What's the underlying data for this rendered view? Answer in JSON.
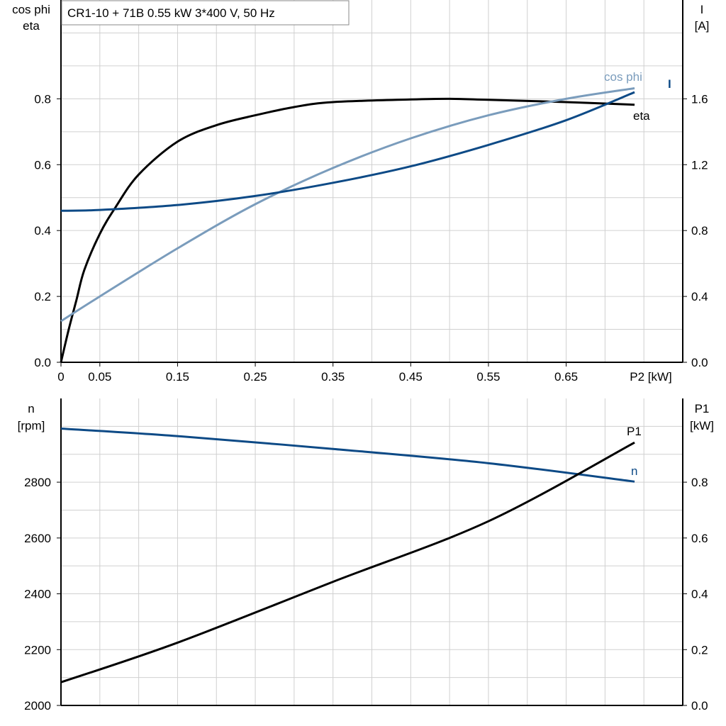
{
  "chart_data": [
    {
      "type": "line",
      "title": "CR1-10 + 71B   0.55 kW   3*400 V, 50 Hz",
      "xlabel": "P2 [kW]",
      "ylabel": [
        "cos phi",
        "eta"
      ],
      "y2label": [
        "I",
        "[A]"
      ],
      "xlim": [
        0,
        0.8
      ],
      "ylim": [
        0,
        1.1
      ],
      "y2lim": [
        0,
        2.2
      ],
      "xticks": [
        "0",
        "0.05",
        "0.15",
        "0.25",
        "0.35",
        "0.45",
        "0.55",
        "0.65"
      ],
      "xtick_values": [
        0,
        0.05,
        0.15,
        0.25,
        0.35,
        0.45,
        0.55,
        0.65
      ],
      "yticks": [
        "0.0",
        "0.2",
        "0.4",
        "0.6",
        "0.8"
      ],
      "y2ticks": [
        "0.0",
        "0.4",
        "0.8",
        "1.2",
        "1.6"
      ],
      "grid": true,
      "series": [
        {
          "name": "eta",
          "axis": "left",
          "color": "#000000",
          "x": [
            0,
            0.01,
            0.02,
            0.03,
            0.05,
            0.07,
            0.1,
            0.15,
            0.2,
            0.25,
            0.3,
            0.35,
            0.45,
            0.5,
            0.55,
            0.65,
            0.738
          ],
          "y": [
            0,
            0.1,
            0.19,
            0.28,
            0.39,
            0.47,
            0.57,
            0.67,
            0.72,
            0.75,
            0.775,
            0.79,
            0.798,
            0.8,
            0.797,
            0.79,
            0.782
          ]
        },
        {
          "name": "cos phi",
          "axis": "left",
          "color": "#7a9cbc",
          "x": [
            0,
            0.05,
            0.15,
            0.25,
            0.35,
            0.45,
            0.55,
            0.65,
            0.738
          ],
          "y": [
            0.125,
            0.2,
            0.346,
            0.48,
            0.59,
            0.68,
            0.75,
            0.8,
            0.832
          ]
        },
        {
          "name": "I",
          "axis": "right",
          "color": "#0d4a86",
          "x": [
            0,
            0.05,
            0.15,
            0.25,
            0.35,
            0.45,
            0.55,
            0.65,
            0.738
          ],
          "y": [
            0.92,
            0.925,
            0.955,
            1.01,
            1.09,
            1.19,
            1.32,
            1.47,
            1.64
          ]
        }
      ]
    },
    {
      "type": "line",
      "xlim": [
        0,
        0.8
      ],
      "ylabel": [
        "n",
        "[rpm]"
      ],
      "y2label": [
        "P1",
        "[kW]"
      ],
      "ylim": [
        2000,
        3100
      ],
      "y2lim": [
        0,
        1.1
      ],
      "yticks": [
        "2000",
        "2200",
        "2400",
        "2600",
        "2800"
      ],
      "y2ticks": [
        "0.0",
        "0.2",
        "0.4",
        "0.6",
        "0.8"
      ],
      "grid": true,
      "series": [
        {
          "name": "n",
          "axis": "left",
          "color": "#0d4a86",
          "x": [
            0,
            0.15,
            0.35,
            0.55,
            0.738
          ],
          "y": [
            2992,
            2965,
            2919,
            2868,
            2802
          ]
        },
        {
          "name": "P1",
          "axis": "right",
          "color": "#000000",
          "x": [
            0,
            0.15,
            0.35,
            0.55,
            0.738
          ],
          "y": [
            0.083,
            0.225,
            0.443,
            0.66,
            0.942
          ]
        }
      ]
    }
  ]
}
